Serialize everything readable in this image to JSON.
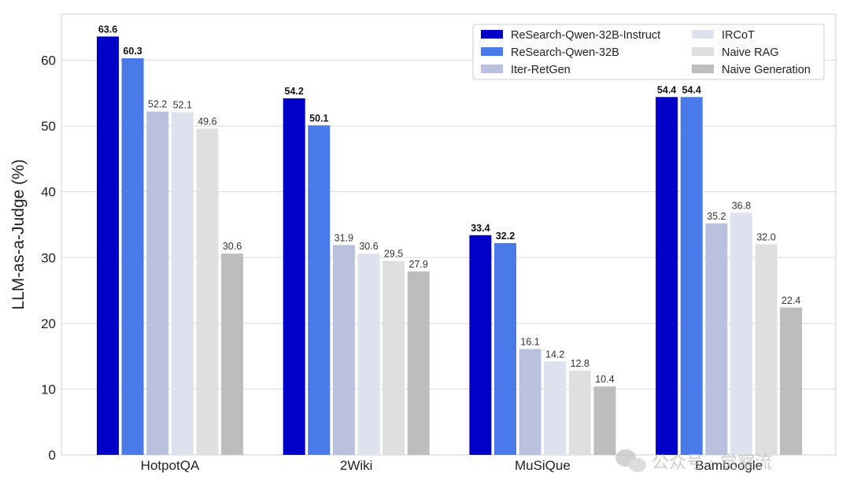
{
  "chart_data": {
    "type": "bar",
    "title": "",
    "xlabel": "",
    "ylabel": "LLM-as-a-Judge (%)",
    "ylim": [
      0,
      67
    ],
    "yticks": [
      0,
      10,
      20,
      30,
      40,
      50,
      60
    ],
    "grid": true,
    "legend_position": "top-right",
    "categories": [
      "HotpotQA",
      "2Wiki",
      "MuSiQue",
      "Bamboogle"
    ],
    "series": [
      {
        "name": "ReSearch-Qwen-32B-Instruct",
        "color": "#0000c8",
        "bold_labels": true,
        "values": [
          63.6,
          54.2,
          33.4,
          54.4
        ]
      },
      {
        "name": "ReSearch-Qwen-32B",
        "color": "#4a7aea",
        "bold_labels": true,
        "values": [
          60.3,
          50.1,
          32.2,
          54.4
        ]
      },
      {
        "name": "Iter-RetGen",
        "color": "#b9c1df",
        "bold_labels": false,
        "values": [
          52.2,
          31.9,
          16.1,
          35.2
        ]
      },
      {
        "name": "IRCoT",
        "color": "#dde2ee",
        "bold_labels": false,
        "values": [
          52.1,
          30.6,
          14.2,
          36.8
        ]
      },
      {
        "name": "Naive RAG",
        "color": "#dfdfdf",
        "bold_labels": false,
        "values": [
          49.6,
          29.5,
          12.8,
          32.0
        ]
      },
      {
        "name": "Naive Generation",
        "color": "#bdbdbd",
        "bold_labels": false,
        "values": [
          30.6,
          27.9,
          10.4,
          22.4
        ]
      }
    ]
  },
  "watermark": {
    "text": "公众号 · 觉察流",
    "icon": "wechat-icon"
  }
}
